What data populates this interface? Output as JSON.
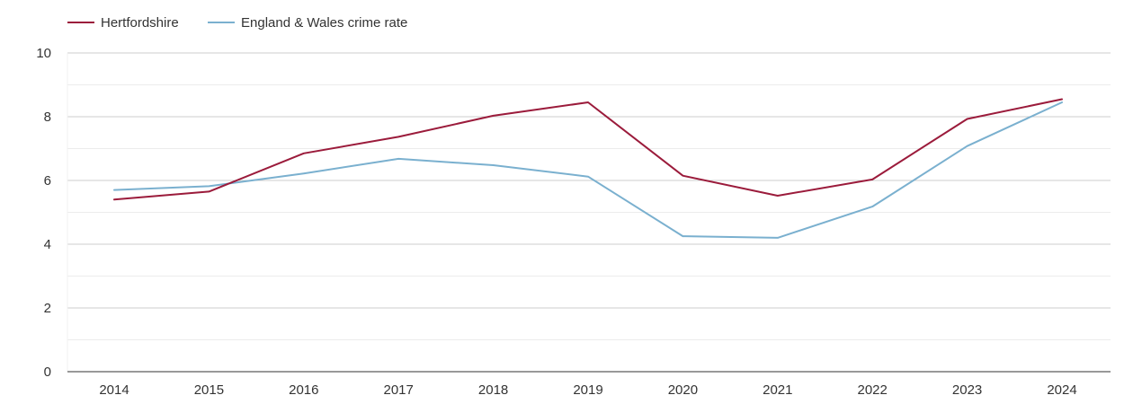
{
  "chart_data": {
    "type": "line",
    "title": "",
    "xlabel": "",
    "ylabel": "",
    "categories": [
      "2014",
      "2015",
      "2016",
      "2017",
      "2018",
      "2019",
      "2020",
      "2021",
      "2022",
      "2023",
      "2024"
    ],
    "ylim": [
      0,
      10
    ],
    "y_ticks": [
      "0",
      "2",
      "4",
      "6",
      "8",
      "10"
    ],
    "grid": true,
    "legend_position": "top-left",
    "series": [
      {
        "name": "Hertfordshire",
        "color": "#9b1b3b",
        "values": [
          5.4,
          5.65,
          6.85,
          7.37,
          8.03,
          8.45,
          6.15,
          5.52,
          6.03,
          7.93,
          8.55
        ]
      },
      {
        "name": "England & Wales crime rate",
        "color": "#7ab0cf",
        "values": [
          5.7,
          5.82,
          6.22,
          6.68,
          6.48,
          6.12,
          4.25,
          4.2,
          5.18,
          7.08,
          8.45
        ]
      }
    ]
  }
}
